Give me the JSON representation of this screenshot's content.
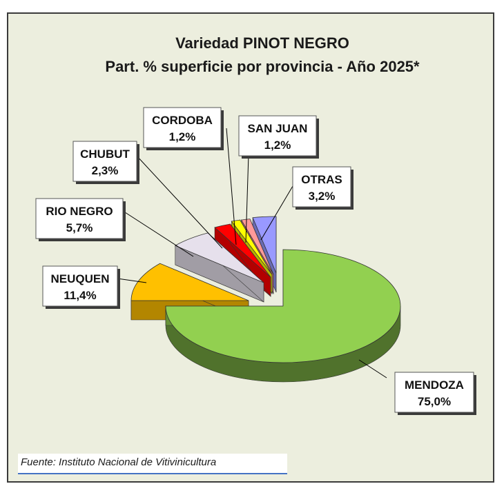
{
  "chart_data": {
    "type": "pie",
    "title": "Variedad PINOT NEGRO",
    "subtitle": "Part. % superficie por provincia - Año 2025*",
    "slices": [
      {
        "label": "MENDOZA",
        "value": 75.0,
        "value_text": "75,0%",
        "color": "#92d050"
      },
      {
        "label": "NEUQUEN",
        "value": 11.4,
        "value_text": "11,4%",
        "color": "#ffc000"
      },
      {
        "label": "RIO NEGRO",
        "value": 5.7,
        "value_text": "5,7%",
        "color": "#e6e0ec"
      },
      {
        "label": "CHUBUT",
        "value": 2.3,
        "value_text": "2,3%",
        "color": "#ff0000"
      },
      {
        "label": "CORDOBA",
        "value": 1.2,
        "value_text": "1,2%",
        "color": "#ffff00"
      },
      {
        "label": "SAN JUAN",
        "value": 1.2,
        "value_text": "1,2%",
        "color": "#ff9999"
      },
      {
        "label": "OTRAS",
        "value": 3.2,
        "value_text": "3,2%",
        "color": "#9999ff"
      }
    ],
    "legend": "none",
    "style": "3d-exploded"
  },
  "source": "Fuente: Instituto Nacional de Vitivinicultura"
}
